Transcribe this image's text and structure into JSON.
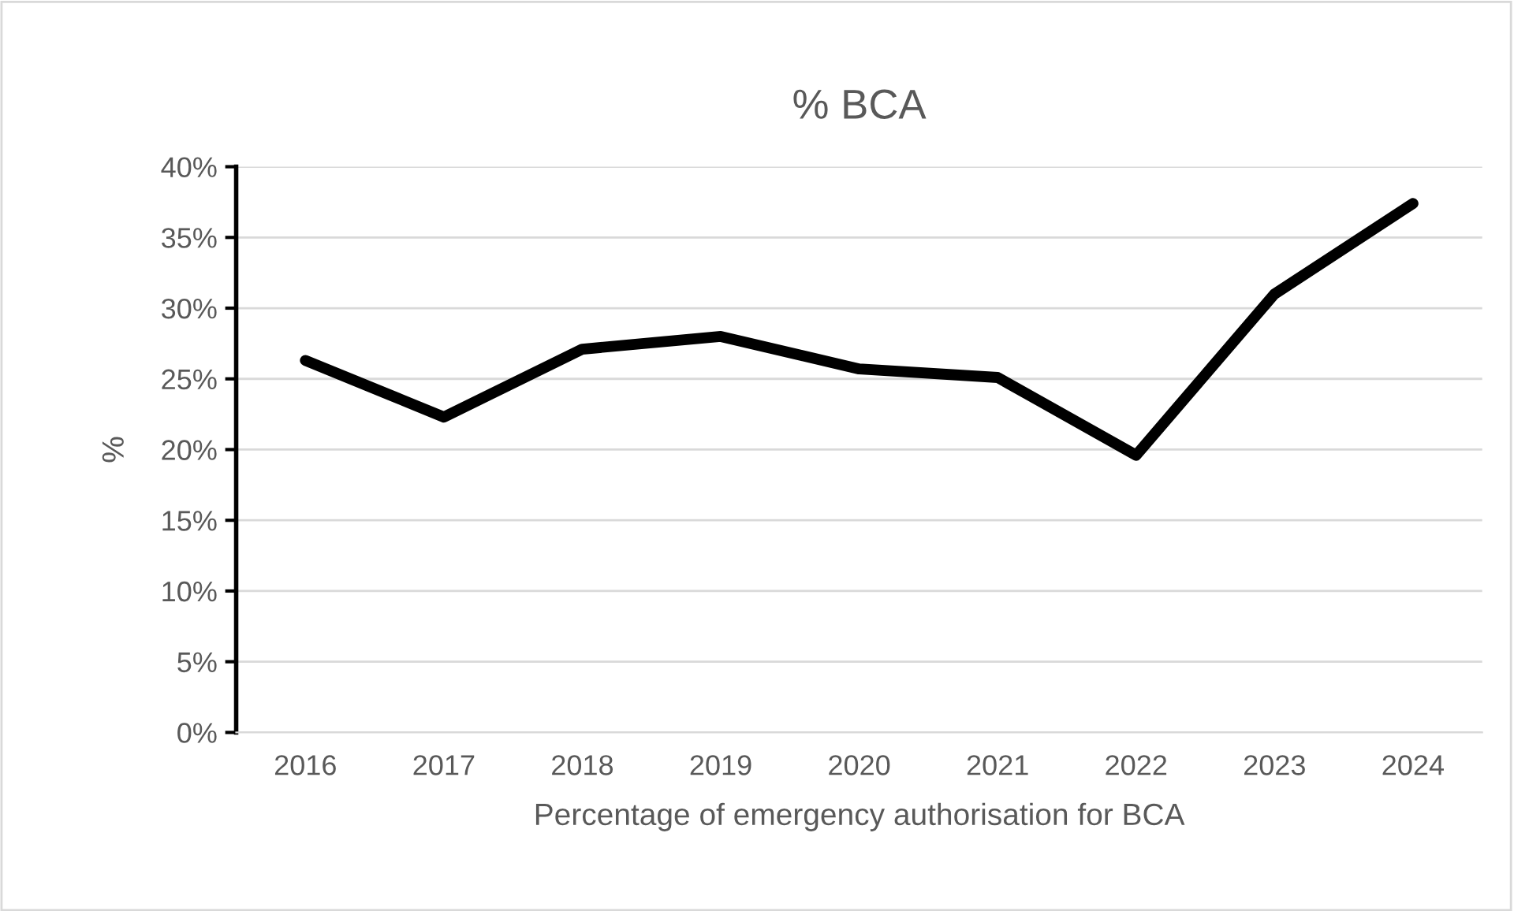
{
  "chart_data": {
    "type": "line",
    "title": "% BCA",
    "xlabel": "Percentage of emergency authorisation for BCA",
    "ylabel": "%",
    "categories": [
      "2016",
      "2017",
      "2018",
      "2019",
      "2020",
      "2021",
      "2022",
      "2023",
      "2024"
    ],
    "series": [
      {
        "color": "#000000",
        "values": [
          26.3,
          22.3,
          27.1,
          28.0,
          25.7,
          25.1,
          19.6,
          31.0,
          37.4
        ]
      }
    ],
    "ylim": [
      0,
      40
    ],
    "yticks": [
      {
        "value": 0,
        "label": "0%"
      },
      {
        "value": 5,
        "label": "5%"
      },
      {
        "value": 10,
        "label": "10%"
      },
      {
        "value": 15,
        "label": "15%"
      },
      {
        "value": 20,
        "label": "20%"
      },
      {
        "value": 25,
        "label": "25%"
      },
      {
        "value": 30,
        "label": "30%"
      },
      {
        "value": 35,
        "label": "35%"
      },
      {
        "value": 40,
        "label": "40%"
      }
    ],
    "grid": "y",
    "marker": "none",
    "line_style": "solid"
  }
}
